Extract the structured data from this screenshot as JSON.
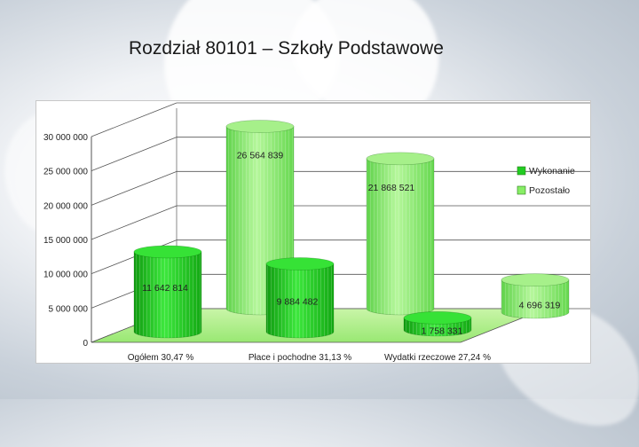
{
  "slide": {
    "title": "Rozdział 80101 – Szkoły Podstawowe"
  },
  "chart_data": {
    "type": "bar",
    "style": "3d-cylinder",
    "title": "",
    "xlabel": "",
    "ylabel": "",
    "ylim": [
      0,
      30000000
    ],
    "yticks": [
      0,
      5000000,
      10000000,
      15000000,
      20000000,
      25000000,
      30000000
    ],
    "ytick_labels": [
      "0",
      "5 000 000",
      "10 000 000",
      "15 000 000",
      "20 000 000",
      "25 000 000",
      "30 000 000"
    ],
    "grid": true,
    "legend_position": "right",
    "categories": [
      "Ogółem 30,47 %",
      "Płace i pochodne 31,13 %",
      "Wydatki rzeczowe 27,24 %"
    ],
    "series": [
      {
        "name": "Wykonanie",
        "color": "#22cc22",
        "values": [
          11642814,
          9884482,
          1758331
        ],
        "labels": [
          "11 642 814",
          "9 884 482",
          "1 758 331"
        ]
      },
      {
        "name": "Pozostało",
        "color": "#88ee66",
        "values": [
          26564839,
          21868521,
          4696319
        ],
        "labels": [
          "26 564 839",
          "21 868 521",
          "4 696 319"
        ]
      }
    ]
  }
}
